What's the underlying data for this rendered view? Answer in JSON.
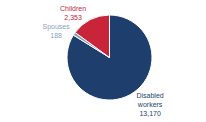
{
  "chart_data": {
    "type": "pie",
    "categories": [
      "Disabled\nworkers",
      "Spouses",
      "Children"
    ],
    "values": [
      13170,
      188,
      2353
    ],
    "value_labels": [
      "13,170",
      "188",
      "2,353"
    ],
    "colors": [
      "#1e3f6e",
      "#8a9fbe",
      "#c8253a"
    ],
    "data_labels": true
  }
}
